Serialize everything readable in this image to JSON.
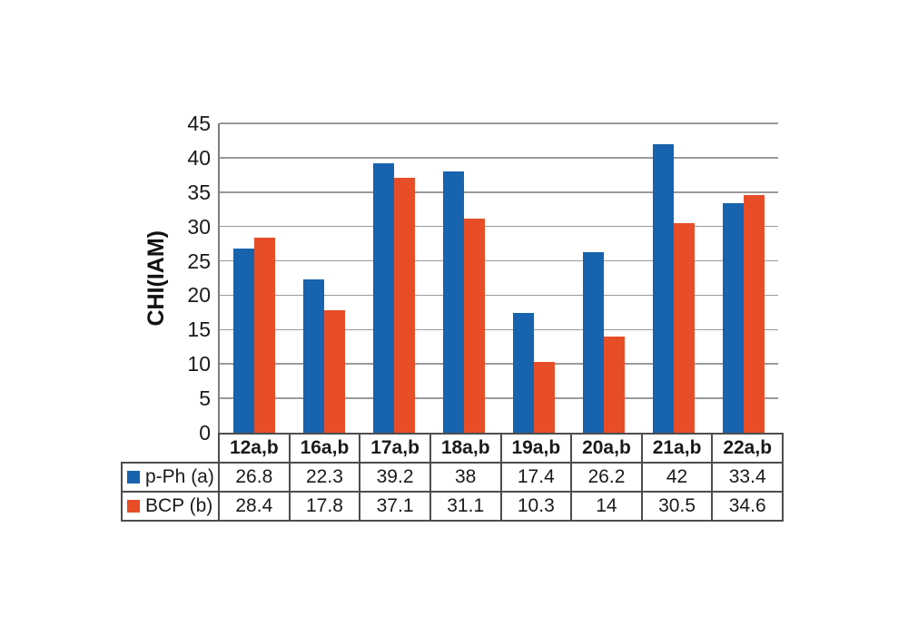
{
  "figure": {
    "background": "#ffffff",
    "axis_line_color": "#7f7f7f",
    "gridline_color": "#9a9a9a",
    "table_border_color": "#4d4d4d",
    "text_color": "#1a1a1a"
  },
  "chart_data": {
    "type": "bar",
    "title": "",
    "xlabel": "",
    "ylabel": "CHI(IAM)",
    "categories": [
      "12a,b",
      "16a,b",
      "17a,b",
      "18a,b",
      "19a,b",
      "20a,b",
      "21a,b",
      "22a,b"
    ],
    "series": [
      {
        "name": "p-Ph (a)",
        "color": "#1763AE",
        "values": [
          26.8,
          22.3,
          39.2,
          38,
          17.4,
          26.2,
          42,
          33.4
        ]
      },
      {
        "name": "BCP (b)",
        "color": "#E74E27",
        "values": [
          28.4,
          17.8,
          37.1,
          31.1,
          10.3,
          14,
          30.5,
          34.6
        ]
      }
    ],
    "ylim": [
      0,
      45
    ],
    "ytick_step": 5,
    "ytick_labels": [
      "0",
      "5",
      "10",
      "15",
      "20",
      "25",
      "30",
      "35",
      "40",
      "45"
    ],
    "grid": "horizontal",
    "legend_position": "table-left",
    "table_rows": [
      {
        "label": "p-Ph (a)",
        "cells": [
          "26.8",
          "22.3",
          "39.2",
          "38",
          "17.4",
          "26.2",
          "42",
          "33.4"
        ]
      },
      {
        "label": "BCP (b)",
        "cells": [
          "28.4",
          "17.8",
          "37.1",
          "31.1",
          "10.3",
          "14",
          "30.5",
          "34.6"
        ]
      }
    ]
  }
}
